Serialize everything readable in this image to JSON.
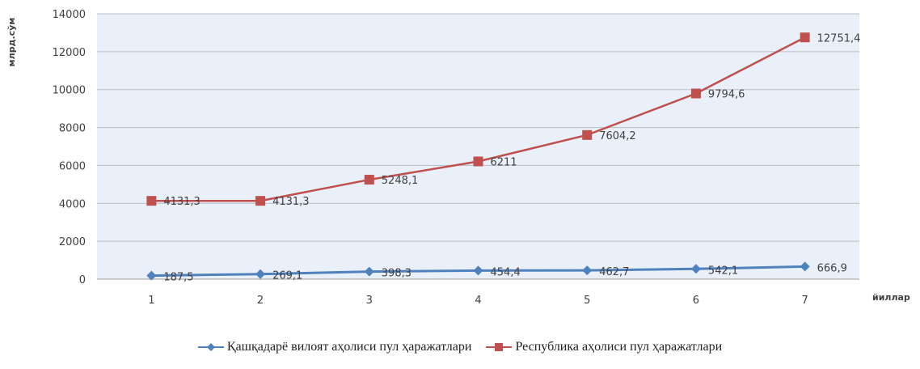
{
  "chart_data": {
    "type": "line",
    "xlabel": "йиллар",
    "ylabel": "млрд.сўм",
    "x": [
      1,
      2,
      3,
      4,
      5,
      6,
      7
    ],
    "ylim": [
      0,
      14000
    ],
    "yticks": [
      0,
      2000,
      4000,
      6000,
      8000,
      10000,
      12000,
      14000
    ],
    "grid": true,
    "legend_position": "bottom",
    "series": [
      {
        "name": "Қашқадарё вилоят аҳолиси пул ҳаражатлари",
        "values": [
          187.5,
          269.1,
          398.3,
          454.4,
          462.7,
          542.1,
          666.9
        ],
        "labels": [
          "187,5",
          "269,1",
          "398,3",
          "454,4",
          "462,7",
          "542,1",
          "666,9"
        ],
        "color": "#4F81BD",
        "marker": "diamond"
      },
      {
        "name": "Республика аҳолиси пул ҳаражатлари",
        "values": [
          4131.3,
          4131.3,
          5248.1,
          6211,
          7604.2,
          9794.6,
          12751.4
        ],
        "labels": [
          "4131,3",
          "4131,3",
          "5248,1",
          "6211",
          "7604,2",
          "9794,6",
          "12751,4"
        ],
        "color": "#C0504D",
        "marker": "square"
      }
    ]
  }
}
